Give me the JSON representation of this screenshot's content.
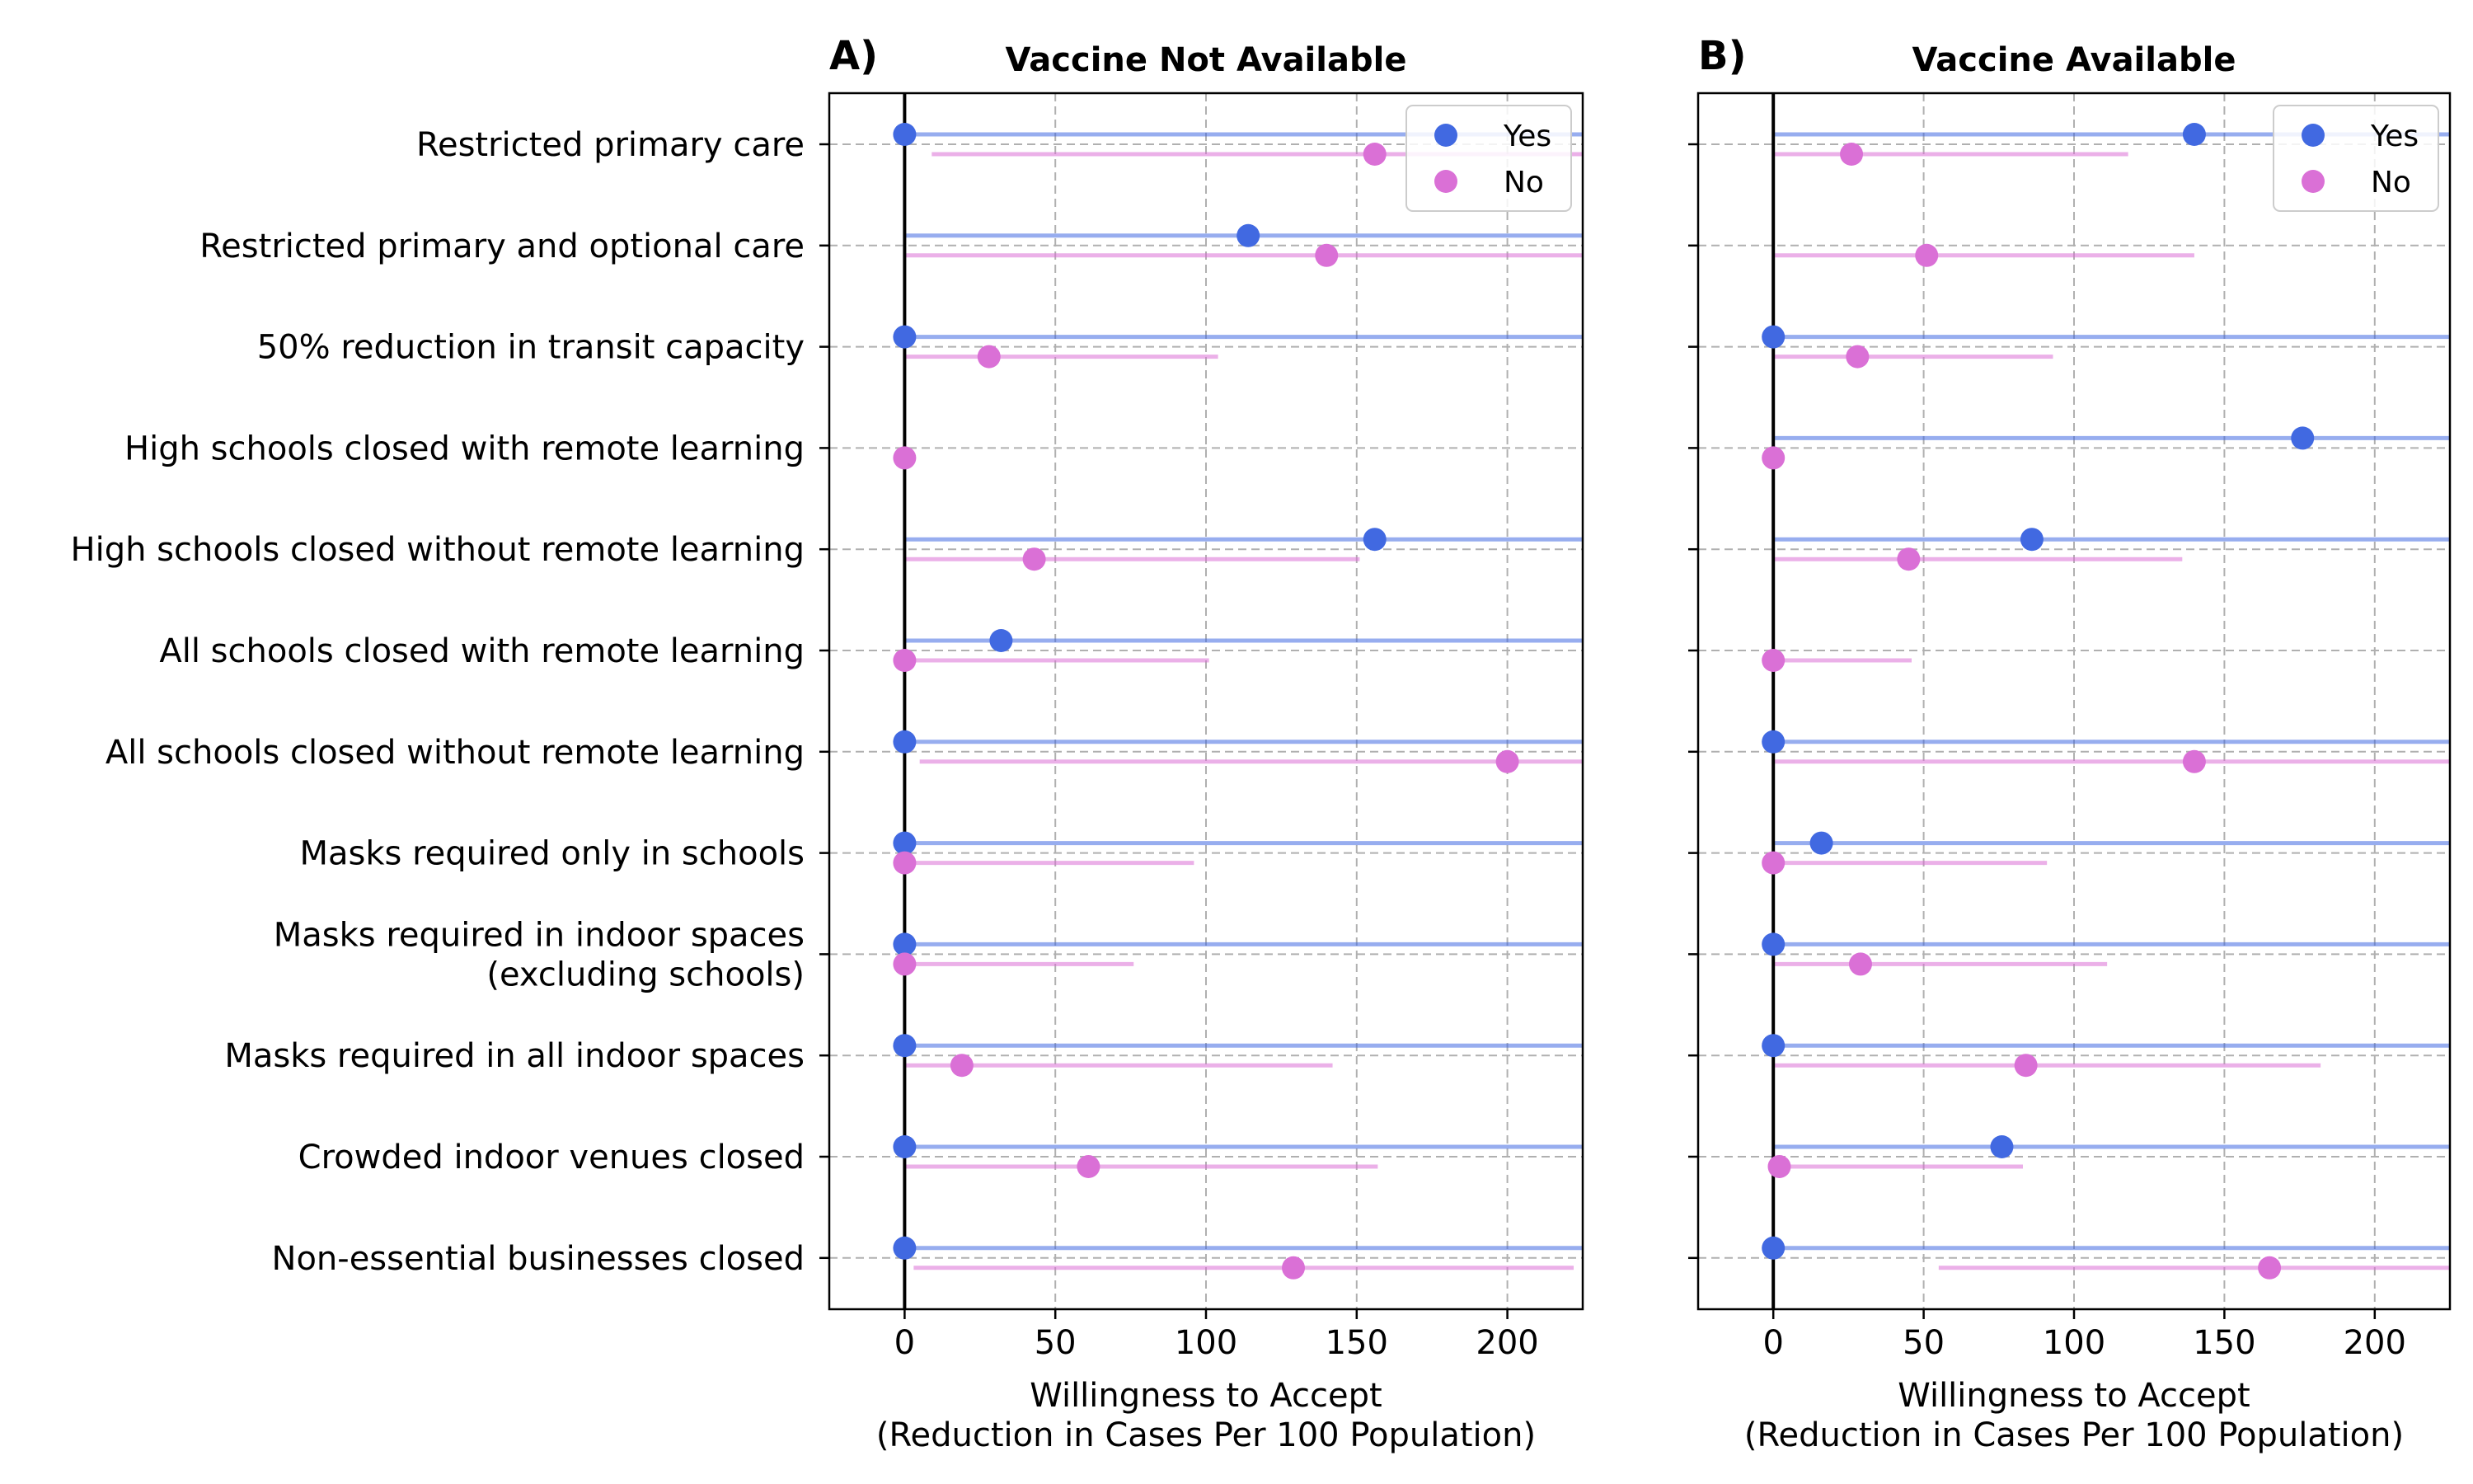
{
  "chart_data": [
    {
      "type": "scatter",
      "panel_label": "A)",
      "title": "Vaccine Not Available",
      "xlabel": "Willingness to Accept\n(Reduction in Cases Per 100 Population)",
      "xlim": [
        -25,
        225
      ],
      "xticks": [
        0,
        50,
        100,
        150,
        200
      ],
      "grid": true,
      "legend": "top-right",
      "categories": [
        "Restricted primary care",
        "Restricted primary and optional care",
        "50% reduction in transit capacity",
        "High schools closed with remote learning",
        "High schools closed without remote learning",
        "All schools closed with remote learning",
        "All schools closed without remote learning",
        "Masks required only in schools",
        "Masks required in indoor spaces\n(excluding schools)",
        "Masks required in all indoor spaces",
        "Crowded indoor venues closed",
        "Non-essential businesses closed"
      ],
      "series": [
        {
          "name": "Yes",
          "color": "#4169e1",
          "values": [
            0,
            114,
            0,
            null,
            156,
            32,
            0,
            0,
            0,
            0,
            0,
            0
          ],
          "ci_low": [
            0,
            0,
            0,
            null,
            0,
            0,
            0,
            0,
            0,
            0,
            0,
            0
          ],
          "ci_high": [
            225,
            225,
            225,
            null,
            225,
            225,
            225,
            225,
            225,
            225,
            225,
            225
          ]
        },
        {
          "name": "No",
          "color": "#da70d6",
          "values": [
            156,
            140,
            28,
            0,
            43,
            0,
            200,
            0,
            0,
            19,
            61,
            129
          ],
          "ci_low": [
            9,
            0,
            0,
            null,
            0,
            0,
            5,
            0,
            0,
            0,
            0,
            3
          ],
          "ci_high": [
            225,
            225,
            104,
            null,
            151,
            101,
            225,
            96,
            76,
            142,
            157,
            222
          ]
        }
      ]
    },
    {
      "type": "scatter",
      "panel_label": "B)",
      "title": "Vaccine Available",
      "xlabel": "Willingness to Accept\n(Reduction in Cases Per 100 Population)",
      "xlim": [
        -25,
        225
      ],
      "xticks": [
        0,
        50,
        100,
        150,
        200
      ],
      "grid": true,
      "legend": "top-right",
      "categories": [
        "Restricted primary care",
        "Restricted primary and optional care",
        "50% reduction in transit capacity",
        "High schools closed with remote learning",
        "High schools closed without remote learning",
        "All schools closed with remote learning",
        "All schools closed without remote learning",
        "Masks required only in schools",
        "Masks required in indoor spaces\n(excluding schools)",
        "Masks required in all indoor spaces",
        "Crowded indoor venues closed",
        "Non-essential businesses closed"
      ],
      "series": [
        {
          "name": "Yes",
          "color": "#4169e1",
          "values": [
            140,
            null,
            0,
            176,
            86,
            null,
            0,
            16,
            0,
            0,
            76,
            0
          ],
          "ci_low": [
            0,
            null,
            0,
            0,
            0,
            null,
            0,
            0,
            0,
            0,
            0,
            0
          ],
          "ci_high": [
            225,
            null,
            225,
            225,
            225,
            null,
            225,
            225,
            225,
            225,
            225,
            225
          ]
        },
        {
          "name": "No",
          "color": "#da70d6",
          "values": [
            26,
            51,
            28,
            0,
            45,
            0,
            140,
            0,
            29,
            84,
            2,
            165
          ],
          "ci_low": [
            0,
            0,
            0,
            null,
            0,
            0,
            0,
            0,
            0,
            0,
            0,
            55
          ],
          "ci_high": [
            118,
            140,
            93,
            null,
            136,
            46,
            225,
            91,
            111,
            182,
            83,
            225
          ]
        }
      ]
    }
  ]
}
